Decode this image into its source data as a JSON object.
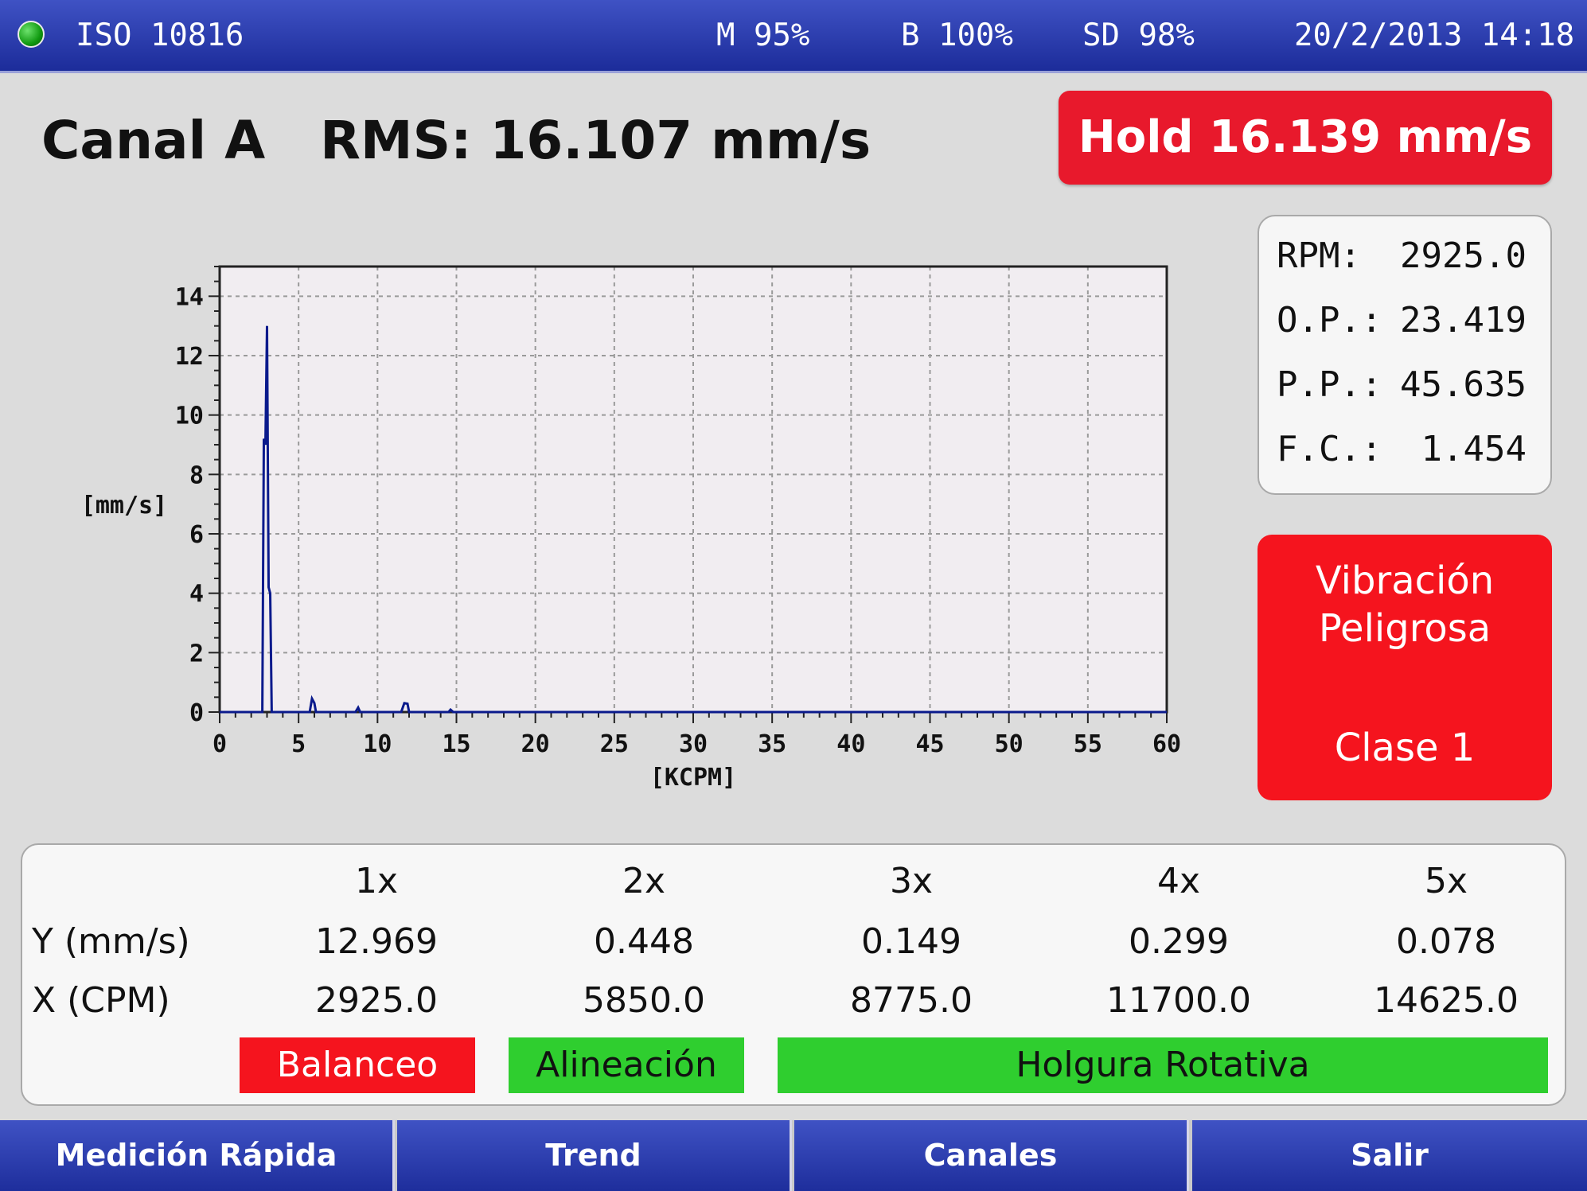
{
  "status_bar": {
    "standard": "ISO 10816",
    "m": "M 95%",
    "b": "B 100%",
    "sd": "SD 98%",
    "datetime": "20/2/2013 14:18",
    "led_color": "#119a11"
  },
  "header": {
    "channel_rms": "Canal A   RMS: 16.107 mm/s",
    "hold": "Hold 16.139 mm/s"
  },
  "chart_data": {
    "type": "line",
    "xlabel": "[KCPM]",
    "ylabel": "[mm/s]",
    "xlim": [
      0,
      60
    ],
    "ylim": [
      0,
      15
    ],
    "x_ticks": [
      0,
      5,
      10,
      15,
      20,
      25,
      30,
      35,
      40,
      45,
      50,
      55,
      60
    ],
    "y_ticks": [
      0,
      2,
      4,
      6,
      8,
      10,
      12,
      14
    ],
    "grid": true,
    "line_color": "#0a1a8c",
    "background": "#f1edf1",
    "series": [
      {
        "x": [
          0,
          2.7,
          2.8,
          2.9,
          3.0,
          3.1,
          3.2,
          3.3,
          3.4,
          5.7,
          5.85,
          6.0,
          6.1,
          8.6,
          8.775,
          8.9,
          11.5,
          11.7,
          11.9,
          12.0,
          14.5,
          14.625,
          14.8,
          60
        ],
        "y": [
          0,
          0,
          9.2,
          9.0,
          13.0,
          4.2,
          4.0,
          0,
          0,
          0,
          0.45,
          0.3,
          0,
          0,
          0.15,
          0,
          0,
          0.3,
          0.28,
          0,
          0,
          0.08,
          0,
          0
        ]
      }
    ]
  },
  "stats": [
    {
      "label": "RPM:",
      "value": "2925.0"
    },
    {
      "label": "O.P.:",
      "value": "23.419"
    },
    {
      "label": "P.P.:",
      "value": "45.635"
    },
    {
      "label": "F.C.:",
      "value": "1.454"
    }
  ],
  "alarm": {
    "line1": "Vibración",
    "line2": "Peligrosa",
    "line3": "Clase 1",
    "color": "#f5141e"
  },
  "harmonics": {
    "headers": [
      "1x",
      "2x",
      "3x",
      "4x",
      "5x"
    ],
    "y_label": "Y (mm/s)",
    "x_label": "X (CPM)",
    "y_values": [
      "12.969",
      "0.448",
      "0.149",
      "0.299",
      "0.078"
    ],
    "x_values": [
      "2925.0",
      "5850.0",
      "8775.0",
      "11700.0",
      "14625.0"
    ],
    "diagnostics": [
      {
        "label": "Balanceo",
        "color": "#f5141e",
        "text_color": "#ffffff"
      },
      {
        "label": "Alineación",
        "color": "#2fce2f",
        "text_color": "#111111"
      },
      {
        "label": "Holgura Rotativa",
        "color": "#2fce2f",
        "text_color": "#111111"
      }
    ]
  },
  "nav": [
    "Medición Rápida",
    "Trend",
    "Canales",
    "Salir"
  ]
}
